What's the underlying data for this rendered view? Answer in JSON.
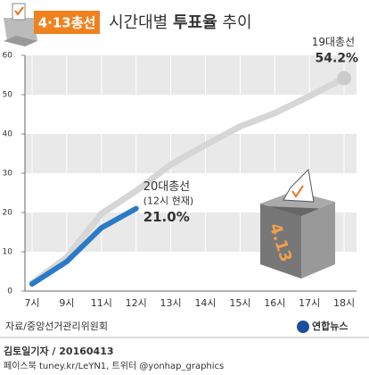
{
  "badge": "4·13총선",
  "chart_data": {
    "type": "line",
    "title": {
      "pre": "시간대별",
      "bold": "투표율",
      "post": "추이"
    },
    "categories": [
      "7시",
      "9시",
      "11시",
      "12시",
      "13시",
      "14시",
      "15시",
      "16시",
      "17시",
      "18시"
    ],
    "series": [
      {
        "name": "19대총선",
        "color": "#d6d6d6",
        "values": [
          2.0,
          8.6,
          19.7,
          25.5,
          32.2,
          37.2,
          41.9,
          45.3,
          49.6,
          54.2
        ],
        "value_labels": [
          null,
          null,
          null,
          null,
          null,
          null,
          null,
          null,
          null,
          "54.2%"
        ]
      },
      {
        "name": "20대총선",
        "color": "#2b7ac8",
        "values": [
          1.8,
          7.5,
          16.1,
          21.0,
          null,
          null,
          null,
          null,
          null,
          null
        ],
        "value_labels": [
          null,
          null,
          null,
          "21.0%",
          null,
          null,
          null,
          null,
          null,
          null
        ]
      }
    ],
    "annotation": "(12시 현재)",
    "ylim": [
      0,
      60
    ],
    "yticks": [
      0,
      10,
      20,
      30,
      40,
      50,
      60
    ],
    "grid": true,
    "source": "자료/중앙선거관리위원회"
  },
  "box_label": "4.13",
  "footer": {
    "byline": "김토일기자 / 20160413",
    "social": "페이스북 tuney.kr/LeYN1, 트위터 @yonhap_graphics",
    "logo": "연합뉴스"
  }
}
